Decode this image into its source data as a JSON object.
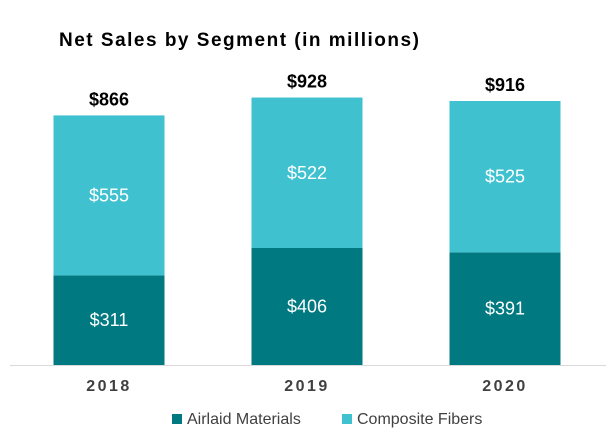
{
  "chart_data": {
    "type": "bar",
    "stacked": true,
    "title": "Net Sales by Segment (in millions)",
    "categories": [
      "2018",
      "2019",
      "2020"
    ],
    "series": [
      {
        "name": "Airlaid Materials",
        "values": [
          311,
          406,
          391
        ],
        "labels": [
          "$311",
          "$406",
          "$391"
        ],
        "color": "#007a80"
      },
      {
        "name": "Composite Fibers",
        "values": [
          555,
          522,
          525
        ],
        "labels": [
          "$555",
          "$522",
          "$525"
        ],
        "color": "#3fc1cf"
      }
    ],
    "totals": [
      866,
      928,
      916
    ],
    "total_labels": [
      "$866",
      "$928",
      "$916"
    ],
    "ylim": [
      0,
      1000
    ],
    "grid": false,
    "legend": "bottom",
    "xlabel": "",
    "ylabel": ""
  }
}
